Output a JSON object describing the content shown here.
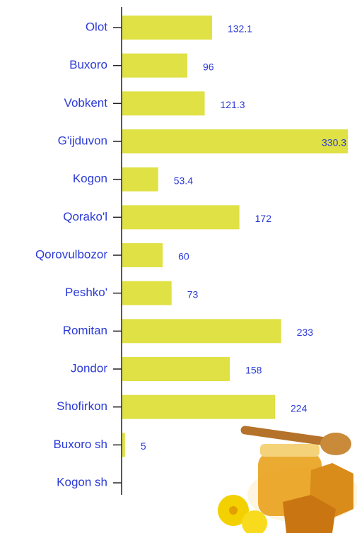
{
  "chart_data": {
    "type": "bar",
    "orientation": "horizontal",
    "categories": [
      "Olot",
      "Buxoro",
      "Vobkent",
      "G'ijduvon",
      "Kogon",
      "Qorako'l",
      "Qorovulbozor",
      "Peshko'",
      "Romitan",
      "Jondor",
      "Shofirkon",
      "Buxoro sh",
      "Kogon sh"
    ],
    "values": [
      132.1,
      96,
      121.3,
      330.3,
      53.4,
      172,
      60,
      73,
      233,
      158,
      224,
      5,
      null
    ],
    "color": "#dfe145"
  }
}
